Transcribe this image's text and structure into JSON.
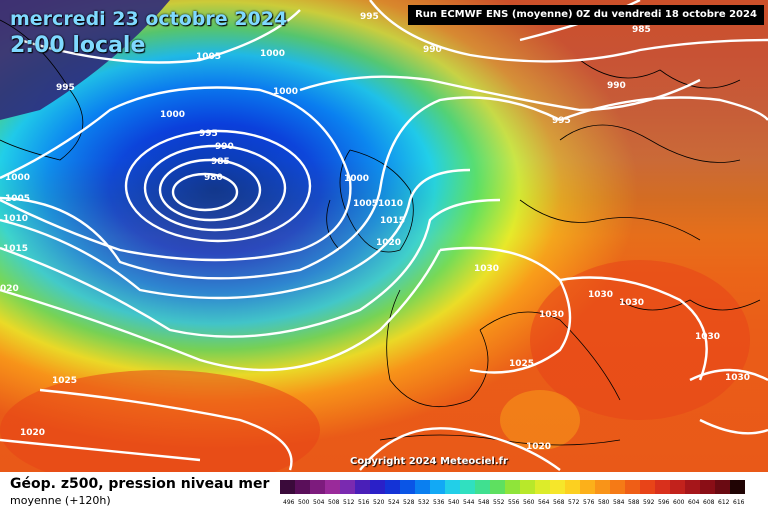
{
  "header": {
    "date": "mercredi 23 octobre 2024",
    "time": "2:00 locale",
    "run": "Run ECMWF ENS (moyenne) 0Z du vendredi 18 octobre 2024"
  },
  "copyright": "Copyright 2024 Meteociel.fr",
  "legend": {
    "title": "Géop. z500, pression niveau mer",
    "subtitle": "moyenne  (+120h)",
    "scale_values": [
      "496",
      "500",
      "504",
      "508",
      "512",
      "516",
      "520",
      "524",
      "528",
      "532",
      "536",
      "540",
      "544",
      "548",
      "552",
      "556",
      "560",
      "564",
      "568",
      "572",
      "576",
      "580",
      "584",
      "588",
      "592",
      "596",
      "600",
      "604",
      "608",
      "612",
      "616"
    ],
    "scale_colors": [
      "#3a0a3a",
      "#5a0f5a",
      "#7d1b7d",
      "#9a2a9a",
      "#7a2ab0",
      "#4a1fb8",
      "#2a20c8",
      "#1433d6",
      "#0a55e6",
      "#0a7ff0",
      "#12a9f5",
      "#22cfe8",
      "#30e0c0",
      "#40e090",
      "#5ee060",
      "#8fe43a",
      "#b8e82a",
      "#dcec2a",
      "#f6e62a",
      "#fcd020",
      "#fcb01a",
      "#f99418",
      "#f57a16",
      "#ef5e16",
      "#e84418",
      "#d9301c",
      "#c2221c",
      "#a6161a",
      "#8a0e16",
      "#6a0a12",
      "#200404"
    ]
  },
  "isobars": [
    {
      "value": "995"
    },
    {
      "value": "990"
    },
    {
      "value": "985"
    },
    {
      "value": "1005"
    },
    {
      "value": "1000"
    },
    {
      "value": "1000"
    },
    {
      "value": "995"
    },
    {
      "value": "1000"
    },
    {
      "value": "995"
    },
    {
      "value": "990"
    },
    {
      "value": "985"
    },
    {
      "value": "980"
    },
    {
      "value": "990"
    },
    {
      "value": "995"
    },
    {
      "value": "1000"
    },
    {
      "value": "1005"
    },
    {
      "value": "1010"
    },
    {
      "value": "1015"
    },
    {
      "value": "020"
    },
    {
      "value": "1000"
    },
    {
      "value": "1005"
    },
    {
      "value": "1010"
    },
    {
      "value": "1015"
    },
    {
      "value": "1020"
    },
    {
      "value": "1030"
    },
    {
      "value": "1030"
    },
    {
      "value": "1030"
    },
    {
      "value": "1030"
    },
    {
      "value": "1030"
    },
    {
      "value": "1030"
    },
    {
      "value": "1025"
    },
    {
      "value": "1025"
    },
    {
      "value": "1020"
    },
    {
      "value": "1020"
    }
  ],
  "colors": {
    "background_low": "#1a3fae",
    "low_core": "#0a1a8a",
    "high": "#e85a1a"
  }
}
